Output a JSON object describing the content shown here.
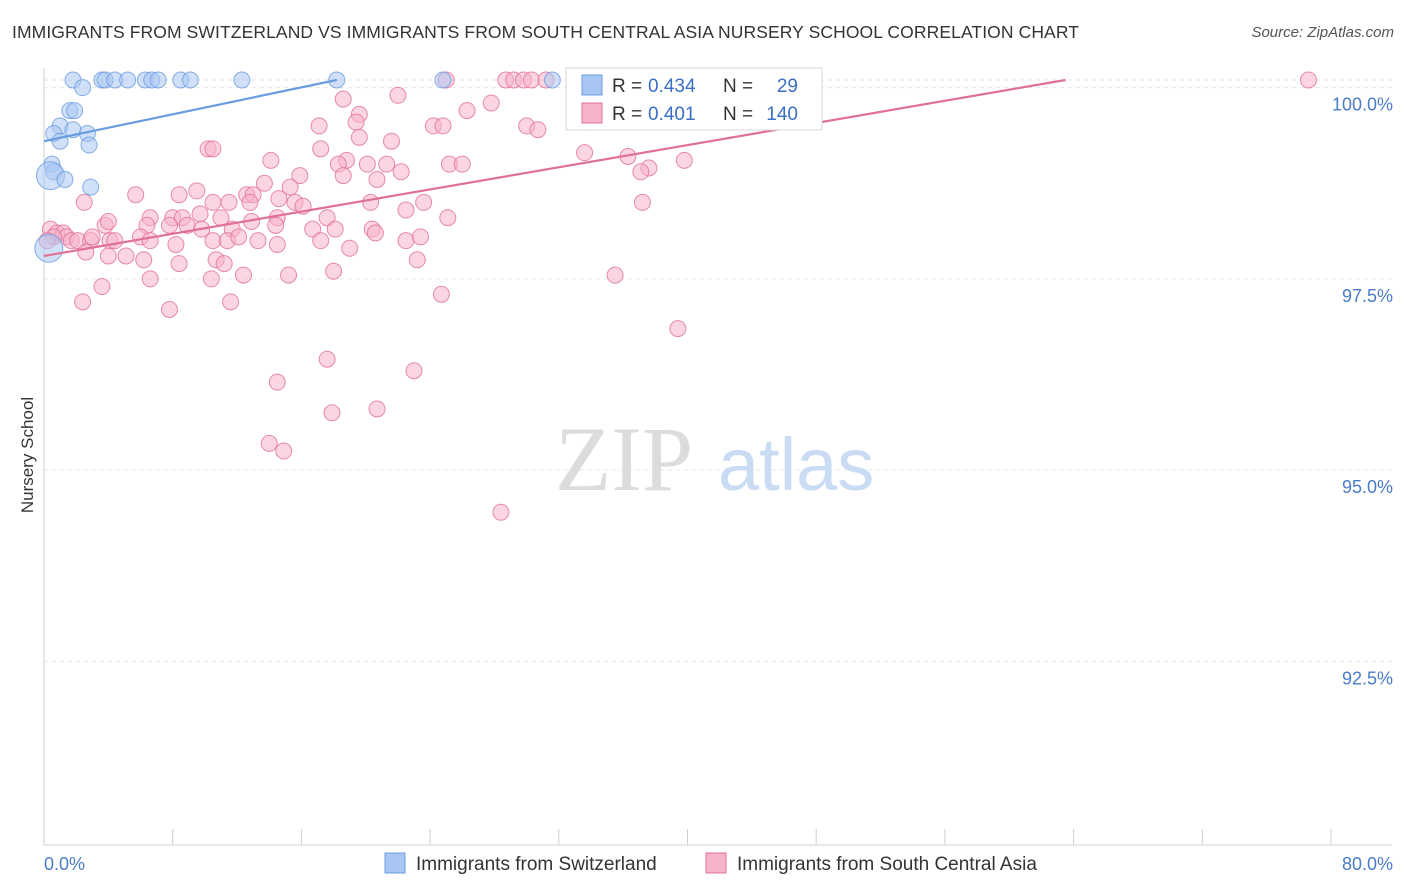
{
  "header": {
    "title": "IMMIGRANTS FROM SWITZERLAND VS IMMIGRANTS FROM SOUTH CENTRAL ASIA NURSERY SCHOOL CORRELATION CHART",
    "source": "Source: ZipAtlas.com"
  },
  "watermark": {
    "zip": "ZIP",
    "atlas": "atlas"
  },
  "legend": {
    "r_label": "R =",
    "n_label": "N =",
    "items": [
      {
        "r": "0.434",
        "n": "29",
        "color": "#a9c6f2"
      },
      {
        "r": "0.401",
        "n": "140",
        "color": "#f7b3c8"
      }
    ]
  },
  "bottom_legend": [
    {
      "label": "Immigrants from Switzerland",
      "color": "#a9c6f2"
    },
    {
      "label": "Immigrants from South Central Asia",
      "color": "#f7b3c8"
    }
  ],
  "chart_data": {
    "type": "scatter",
    "ylabel": "Nursery School",
    "xlabel": "",
    "xlim": [
      0,
      80
    ],
    "ylim": [
      90.5,
      100.5
    ],
    "x_tick_labels": [
      {
        "value": 0,
        "label": "0.0%"
      },
      {
        "value": 80,
        "label": "80.0%"
      }
    ],
    "y_tick_labels": [
      {
        "value": 100,
        "label": "100.0%"
      },
      {
        "value": 97.5,
        "label": "97.5%"
      },
      {
        "value": 95,
        "label": "95.0%"
      },
      {
        "value": 92.5,
        "label": "92.5%"
      }
    ],
    "grid": true,
    "series": [
      {
        "name": "Immigrants from Switzerland",
        "color": "#6a9ce0",
        "fill": "#a9c6f2",
        "trend": {
          "x": [
            0,
            18.2
          ],
          "y": [
            99.3,
            100.1
          ]
        },
        "points": [
          [
            1.8,
            100.1
          ],
          [
            3.6,
            100.1
          ],
          [
            3.8,
            100.1
          ],
          [
            4.4,
            100.1
          ],
          [
            5.2,
            100.1
          ],
          [
            6.3,
            100.1
          ],
          [
            6.7,
            100.1
          ],
          [
            7.1,
            100.1
          ],
          [
            8.5,
            100.1
          ],
          [
            9.1,
            100.1
          ],
          [
            12.3,
            100.1
          ],
          [
            18.2,
            100.1
          ],
          [
            24.8,
            100.1
          ],
          [
            31.6,
            100.1
          ],
          [
            2.4,
            100.0
          ],
          [
            1.6,
            99.7
          ],
          [
            1.9,
            99.7
          ],
          [
            1.0,
            99.5
          ],
          [
            1.8,
            99.45
          ],
          [
            0.6,
            99.4
          ],
          [
            2.7,
            99.4
          ],
          [
            1.0,
            99.3
          ],
          [
            2.8,
            99.25
          ],
          [
            0.5,
            99.0
          ],
          [
            0.6,
            98.9
          ],
          [
            0.4,
            98.85
          ],
          [
            1.3,
            98.8
          ],
          [
            2.9,
            98.7
          ],
          [
            0.3,
            97.9
          ]
        ]
      },
      {
        "name": "Immigrants from South Central Asia",
        "color": "#e0709a",
        "fill": "#f7b3c8",
        "trend": {
          "x": [
            0,
            63.5
          ],
          "y": [
            97.8,
            100.1
          ]
        },
        "points": [
          [
            25.0,
            100.1
          ],
          [
            28.7,
            100.1
          ],
          [
            29.2,
            100.1
          ],
          [
            29.8,
            100.1
          ],
          [
            30.3,
            100.1
          ],
          [
            31.2,
            100.1
          ],
          [
            33.4,
            100.1
          ],
          [
            34.8,
            100.1
          ],
          [
            36.0,
            100.1
          ],
          [
            36.4,
            100.1
          ],
          [
            37.6,
            100.1
          ],
          [
            38.2,
            100.1
          ],
          [
            41.3,
            100.1
          ],
          [
            78.6,
            100.1
          ],
          [
            22.0,
            99.9
          ],
          [
            18.6,
            99.85
          ],
          [
            27.8,
            99.8
          ],
          [
            26.3,
            99.7
          ],
          [
            19.6,
            99.65
          ],
          [
            19.4,
            99.55
          ],
          [
            33.7,
            99.55
          ],
          [
            17.1,
            99.5
          ],
          [
            24.2,
            99.5
          ],
          [
            24.8,
            99.5
          ],
          [
            30.0,
            99.5
          ],
          [
            30.7,
            99.45
          ],
          [
            19.6,
            99.35
          ],
          [
            21.6,
            99.3
          ],
          [
            10.2,
            99.2
          ],
          [
            10.5,
            99.2
          ],
          [
            17.2,
            99.2
          ],
          [
            33.6,
            99.15
          ],
          [
            36.3,
            99.1
          ],
          [
            39.8,
            99.05
          ],
          [
            14.1,
            99.05
          ],
          [
            18.8,
            99.05
          ],
          [
            18.3,
            99.0
          ],
          [
            20.1,
            99.0
          ],
          [
            21.3,
            99.0
          ],
          [
            25.2,
            99.0
          ],
          [
            26.0,
            99.0
          ],
          [
            22.2,
            98.9
          ],
          [
            37.6,
            98.95
          ],
          [
            37.1,
            98.9
          ],
          [
            15.9,
            98.85
          ],
          [
            18.6,
            98.85
          ],
          [
            20.7,
            98.8
          ],
          [
            13.7,
            98.75
          ],
          [
            15.3,
            98.7
          ],
          [
            9.5,
            98.65
          ],
          [
            5.7,
            98.6
          ],
          [
            8.4,
            98.6
          ],
          [
            12.6,
            98.6
          ],
          [
            13.0,
            98.6
          ],
          [
            14.6,
            98.55
          ],
          [
            15.6,
            98.5
          ],
          [
            10.5,
            98.5
          ],
          [
            2.5,
            98.5
          ],
          [
            11.5,
            98.5
          ],
          [
            12.8,
            98.5
          ],
          [
            20.3,
            98.5
          ],
          [
            23.6,
            98.5
          ],
          [
            37.2,
            98.5
          ],
          [
            16.1,
            98.45
          ],
          [
            22.5,
            98.4
          ],
          [
            9.7,
            98.35
          ],
          [
            6.6,
            98.3
          ],
          [
            8.0,
            98.3
          ],
          [
            11.0,
            98.3
          ],
          [
            12.9,
            98.25
          ],
          [
            17.6,
            98.3
          ],
          [
            25.1,
            98.3
          ],
          [
            14.5,
            98.3
          ],
          [
            8.6,
            98.3
          ],
          [
            3.8,
            98.2
          ],
          [
            4.0,
            98.25
          ],
          [
            6.4,
            98.2
          ],
          [
            7.8,
            98.2
          ],
          [
            8.9,
            98.2
          ],
          [
            9.8,
            98.15
          ],
          [
            11.7,
            98.15
          ],
          [
            14.4,
            98.2
          ],
          [
            16.7,
            98.15
          ],
          [
            18.1,
            98.15
          ],
          [
            20.4,
            98.15
          ],
          [
            0.4,
            98.15
          ],
          [
            0.8,
            98.1
          ],
          [
            1.2,
            98.1
          ],
          [
            1.4,
            98.05
          ],
          [
            0.6,
            98.05
          ],
          [
            0.2,
            98.0
          ],
          [
            1.7,
            98.0
          ],
          [
            2.1,
            98.0
          ],
          [
            2.9,
            98.0
          ],
          [
            3.0,
            98.05
          ],
          [
            4.1,
            98.0
          ],
          [
            4.4,
            98.0
          ],
          [
            6.0,
            98.05
          ],
          [
            6.6,
            98.0
          ],
          [
            8.2,
            97.95
          ],
          [
            10.5,
            98.0
          ],
          [
            11.4,
            98.0
          ],
          [
            12.1,
            98.05
          ],
          [
            13.3,
            98.0
          ],
          [
            14.5,
            97.95
          ],
          [
            17.2,
            98.0
          ],
          [
            19.0,
            97.9
          ],
          [
            20.6,
            98.1
          ],
          [
            22.5,
            98.0
          ],
          [
            23.4,
            98.05
          ],
          [
            2.6,
            97.85
          ],
          [
            4.0,
            97.8
          ],
          [
            5.1,
            97.8
          ],
          [
            6.2,
            97.75
          ],
          [
            8.4,
            97.7
          ],
          [
            10.7,
            97.75
          ],
          [
            11.2,
            97.7
          ],
          [
            15.2,
            97.55
          ],
          [
            18.0,
            97.6
          ],
          [
            23.2,
            97.75
          ],
          [
            3.6,
            97.4
          ],
          [
            6.6,
            97.5
          ],
          [
            10.4,
            97.5
          ],
          [
            12.4,
            97.55
          ],
          [
            24.7,
            97.3
          ],
          [
            35.5,
            97.55
          ],
          [
            2.4,
            97.2
          ],
          [
            7.8,
            97.1
          ],
          [
            11.6,
            97.2
          ],
          [
            39.4,
            96.85
          ],
          [
            17.6,
            96.45
          ],
          [
            23.0,
            96.3
          ],
          [
            14.5,
            96.15
          ],
          [
            17.9,
            95.75
          ],
          [
            20.7,
            95.8
          ],
          [
            14.0,
            95.35
          ],
          [
            14.9,
            95.25
          ],
          [
            28.4,
            94.45
          ]
        ]
      }
    ]
  }
}
